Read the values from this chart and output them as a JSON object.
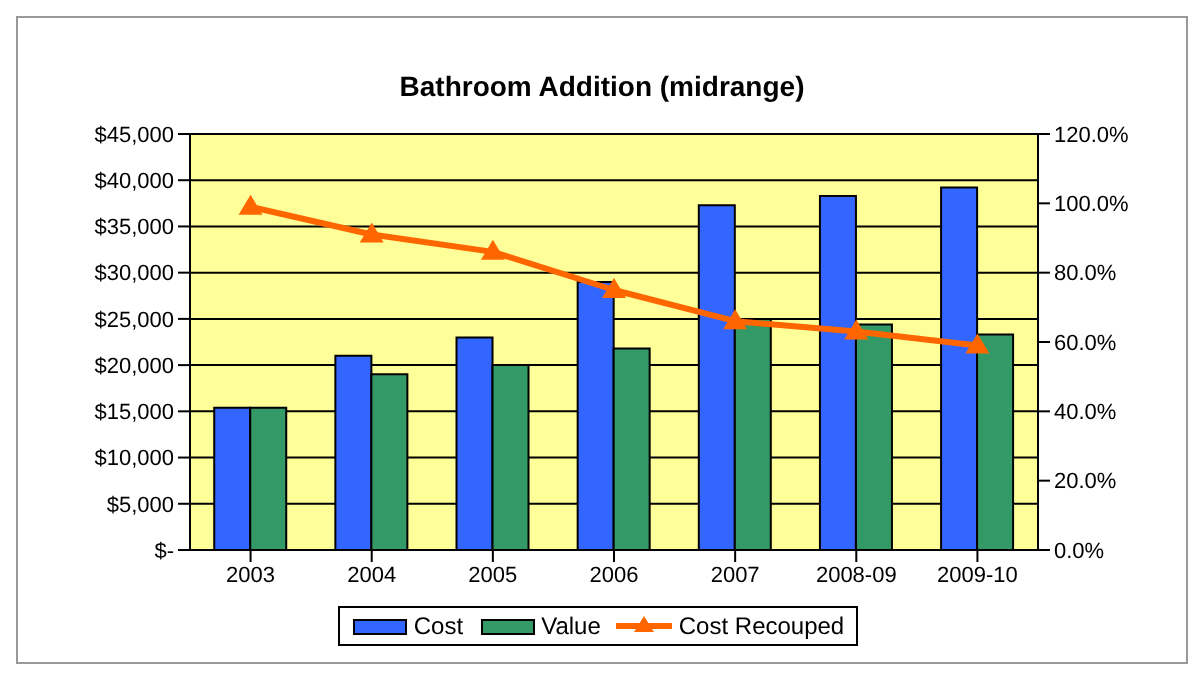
{
  "chart_data": {
    "type": "bar",
    "title": "Bathroom Addition (midrange)",
    "categories": [
      "2003",
      "2004",
      "2005",
      "2006",
      "2007",
      "2008-09",
      "2009-10"
    ],
    "series": [
      {
        "name": "Cost",
        "type": "bar",
        "color": "#3366ff",
        "values": [
          15400,
          21000,
          23000,
          29000,
          37300,
          38300,
          39200
        ]
      },
      {
        "name": "Value",
        "type": "bar",
        "color": "#339966",
        "values": [
          15400,
          19000,
          20000,
          21800,
          25000,
          24400,
          23300
        ]
      },
      {
        "name": "Cost Recouped",
        "type": "line",
        "axis": "y2",
        "color": "#ff6600",
        "marker": "triangle",
        "values": [
          99,
          91,
          86,
          75,
          66,
          63,
          59
        ]
      }
    ],
    "ylim": [
      0,
      45000
    ],
    "yticks": [
      {
        "value": 0,
        "label": "$-"
      },
      {
        "value": 5000,
        "label": "$5,000"
      },
      {
        "value": 10000,
        "label": "$10,000"
      },
      {
        "value": 15000,
        "label": "$15,000"
      },
      {
        "value": 20000,
        "label": "$20,000"
      },
      {
        "value": 25000,
        "label": "$25,000"
      },
      {
        "value": 30000,
        "label": "$30,000"
      },
      {
        "value": 35000,
        "label": "$35,000"
      },
      {
        "value": 40000,
        "label": "$40,000"
      },
      {
        "value": 45000,
        "label": "$45,000"
      }
    ],
    "y2lim": [
      0,
      120
    ],
    "y2ticks": [
      {
        "value": 0,
        "label": "0.0%"
      },
      {
        "value": 20,
        "label": "20.0%"
      },
      {
        "value": 40,
        "label": "40.0%"
      },
      {
        "value": 60,
        "label": "60.0%"
      },
      {
        "value": 80,
        "label": "80.0%"
      },
      {
        "value": 100,
        "label": "100.0%"
      },
      {
        "value": 120,
        "label": "120.0%"
      }
    ],
    "grid": "y",
    "legend": "bottom"
  }
}
